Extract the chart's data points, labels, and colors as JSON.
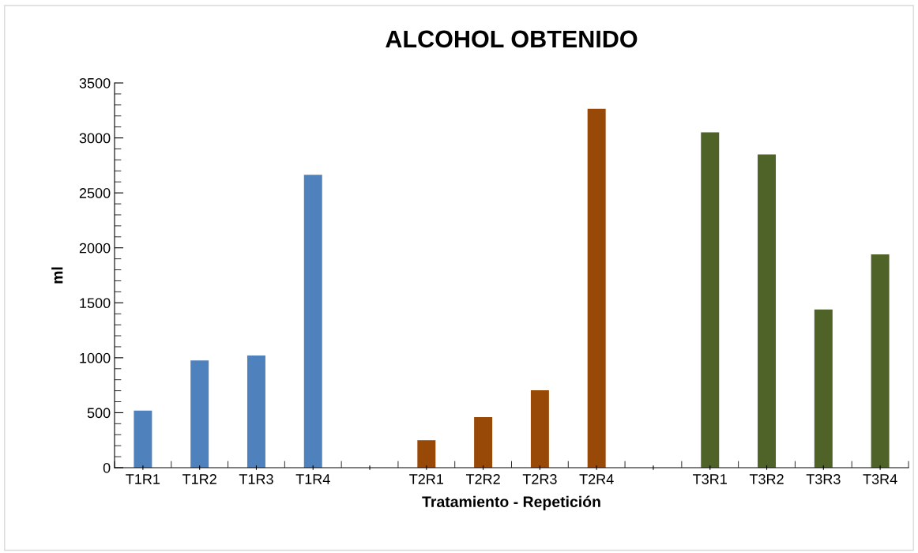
{
  "chart_data": {
    "type": "bar",
    "title": "ALCOHOL OBTENIDO",
    "xlabel": "Tratamiento - Repetición",
    "ylabel": "ml",
    "categories": [
      "T1R1",
      "T1R2",
      "T1R3",
      "T1R4",
      null,
      "T2R1",
      "T2R2",
      "T2R3",
      "T2R4",
      null,
      "T3R1",
      "T3R2",
      "T3R3",
      "T3R4"
    ],
    "values": [
      520,
      975,
      1020,
      2665,
      null,
      250,
      460,
      705,
      3265,
      null,
      3050,
      2850,
      1440,
      1940
    ],
    "colors": [
      "#4f81bd",
      "#4f81bd",
      "#4f81bd",
      "#4f81bd",
      null,
      "#984807",
      "#984807",
      "#984807",
      "#984807",
      null,
      "#4f6228",
      "#4f6228",
      "#4f6228",
      "#4f6228"
    ],
    "ylim": [
      0,
      3500
    ],
    "yticks": [
      0,
      500,
      1000,
      1500,
      2000,
      2500,
      3000,
      3500
    ],
    "grid": false,
    "legend": false
  }
}
